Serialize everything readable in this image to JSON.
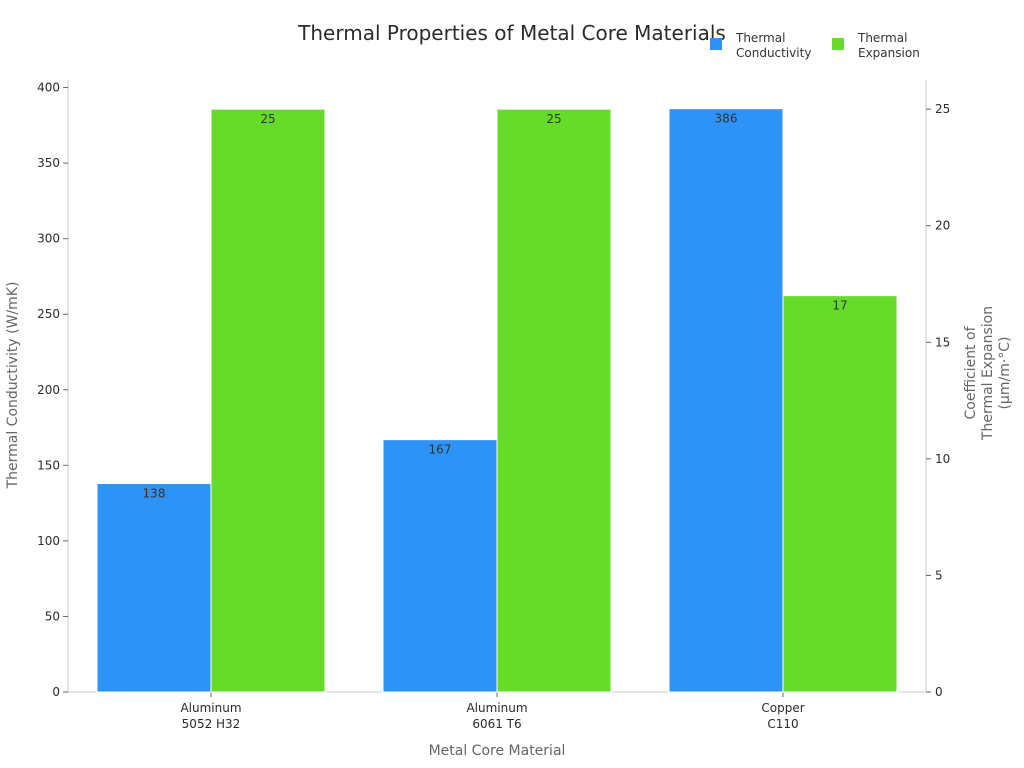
{
  "chart_data": {
    "type": "bar",
    "title": "Thermal Properties of Metal Core Materials",
    "categories": [
      [
        "Aluminum",
        "5052 H32"
      ],
      [
        "Aluminum",
        "6061 T6"
      ],
      [
        "Copper",
        "C110"
      ]
    ],
    "xlabel": "Metal Core Material",
    "ylabel_left": "Thermal Conductivity (W/mK)",
    "ylabel_right": [
      "Coefficient of",
      "Thermal Expansion",
      "(μm/m·°C)"
    ],
    "ylim_left": [
      0,
      405
    ],
    "ylim_right": [
      0,
      26.25
    ],
    "yticks_left": [
      0,
      50,
      100,
      150,
      200,
      250,
      300,
      350,
      400
    ],
    "yticks_right": [
      0,
      5,
      10,
      15,
      20,
      25
    ],
    "grid": false,
    "legend_position": "top-right",
    "series": [
      {
        "name": [
          "Thermal",
          "Conductivity"
        ],
        "axis": "left",
        "color": "#2e93f7",
        "values": [
          138,
          167,
          386
        ],
        "labels": [
          "138",
          "167",
          "386"
        ]
      },
      {
        "name": [
          "Thermal",
          "Expansion"
        ],
        "axis": "right",
        "color": "#66db29",
        "values": [
          25,
          25,
          17
        ],
        "labels": [
          "25",
          "25",
          "17"
        ]
      }
    ]
  }
}
